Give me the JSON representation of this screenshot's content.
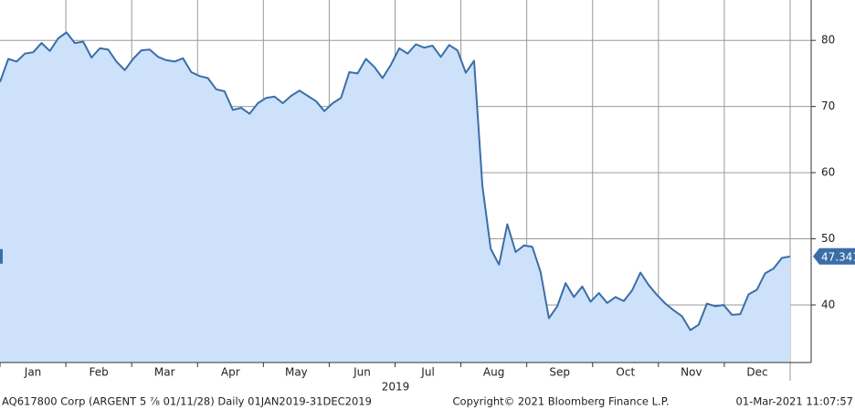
{
  "chart_data": {
    "type": "area",
    "color": "#3b6ea8",
    "fill": "#cde1fa",
    "grid": true,
    "ylim": [
      31.3,
      86.1
    ],
    "yticks": [
      40,
      50,
      60,
      70,
      80
    ],
    "month_labels": [
      "Jan",
      "Feb",
      "Mar",
      "Apr",
      "May",
      "Jun",
      "Jul",
      "Aug",
      "Sep",
      "Oct",
      "Nov",
      "Dec"
    ],
    "year_label": "2019",
    "values": [
      73.7,
      77.2,
      76.8,
      78.0,
      78.2,
      79.6,
      78.4,
      80.3,
      81.2,
      79.6,
      79.8,
      77.4,
      78.8,
      78.6,
      76.8,
      75.5,
      77.2,
      78.5,
      78.6,
      77.5,
      77.0,
      76.8,
      77.3,
      75.2,
      74.6,
      74.3,
      72.6,
      72.3,
      69.5,
      69.8,
      68.9,
      70.5,
      71.3,
      71.5,
      70.5,
      71.6,
      72.4,
      71.6,
      70.8,
      69.3,
      70.5,
      71.3,
      75.2,
      75.0,
      77.2,
      76.0,
      74.3,
      76.3,
      78.8,
      78.0,
      79.4,
      78.9,
      79.2,
      77.5,
      79.3,
      78.5,
      75.1,
      76.9,
      58.0,
      48.5,
      46.1,
      52.2,
      48.0,
      49.0,
      48.8,
      45.0,
      38.0,
      39.8,
      43.3,
      41.2,
      42.8,
      40.5,
      41.8,
      40.3,
      41.2,
      40.6,
      42.2,
      44.9,
      43.0,
      41.5,
      40.2,
      39.2,
      38.3,
      36.2,
      37.0,
      40.2,
      39.8,
      40.0,
      38.5,
      38.6,
      41.6,
      42.3,
      44.8,
      45.5,
      47.1,
      47.341
    ],
    "footer_left": "AQ617800 Corp (ARGENT 5 ⅞ 01/11/28)  Daily 01JAN2019-31DEC2019",
    "footer_center": "Copyright© 2021 Bloomberg Finance L.P.",
    "footer_right": "01-Mar-2021 11:07:57"
  }
}
